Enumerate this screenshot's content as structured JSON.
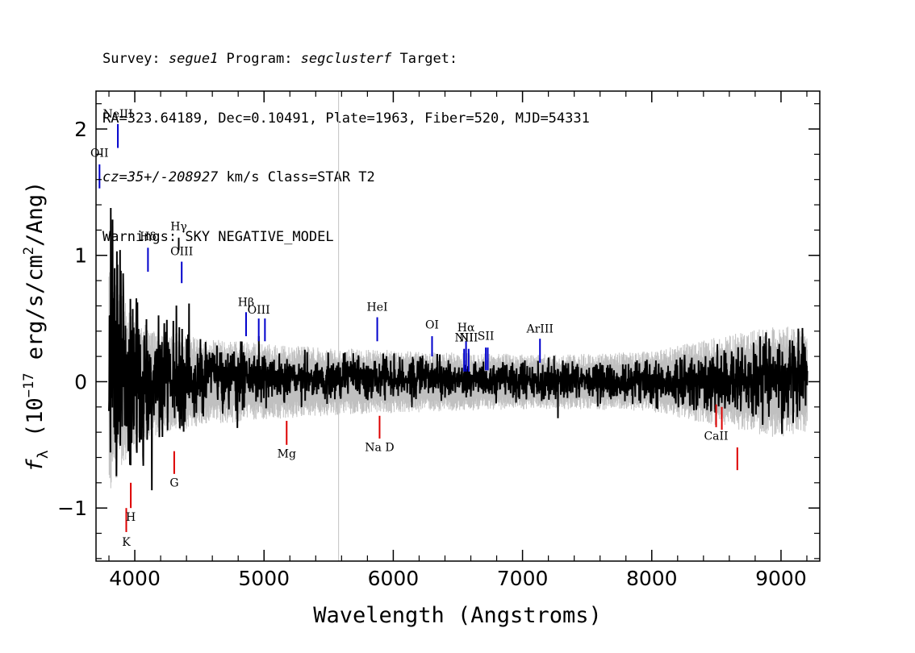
{
  "header": {
    "line1": {
      "survey_label": "Survey: ",
      "survey": "segue1",
      "program_label": " Program: ",
      "program": "segclusterf",
      "target_label": " Target:"
    },
    "line2": "RA=323.64189, Dec=0.10491, Plate=1963, Fiber=520, MJD=54331",
    "line3": {
      "cz": "cz=35+/-208927",
      "rest": " km/s Class=STAR T2"
    },
    "line4": "Warnings: SKY NEGATIVE_MODEL"
  },
  "chart_data": {
    "type": "line",
    "xlabel": "Wavelength (Angstroms)",
    "ylabel": "f_λ (10^-17 erg/s/cm^2/Ang)",
    "ylabel_parts": {
      "f": "f",
      "sub": "λ",
      "pre": " (10",
      "exp1": "−17",
      "mid": " erg/s/cm",
      "exp2": "2",
      "post": "/Ang)"
    },
    "xlim": [
      3700,
      9300
    ],
    "ylim": [
      -1.42,
      2.3
    ],
    "xticks": [
      4000,
      5000,
      6000,
      7000,
      8000,
      9000
    ],
    "yticks": [
      -1,
      0,
      1,
      2
    ],
    "ytick_labels": [
      "−1",
      "0",
      "1",
      "2"
    ],
    "sky_line_x": 5577,
    "series": [
      {
        "role": "error",
        "color": "#c0c0c0"
      },
      {
        "role": "flux",
        "color": "#000000"
      }
    ],
    "flux_profile": [
      [
        3800,
        0.15,
        0.55
      ],
      [
        3900,
        0.1,
        0.45
      ],
      [
        4000,
        0.05,
        0.32
      ],
      [
        4200,
        0.04,
        0.22
      ],
      [
        4500,
        0.03,
        0.14
      ],
      [
        5000,
        0.03,
        0.1
      ],
      [
        5500,
        0.02,
        0.08
      ],
      [
        6000,
        0.03,
        0.08
      ],
      [
        6500,
        0.02,
        0.07
      ],
      [
        7000,
        0.0,
        0.07
      ],
      [
        7500,
        0.0,
        0.07
      ],
      [
        8000,
        0.0,
        0.08
      ],
      [
        8500,
        0.0,
        0.12
      ],
      [
        9000,
        0.0,
        0.15
      ],
      [
        9200,
        0.05,
        0.17
      ]
    ],
    "error_profile": [
      [
        3800,
        0.9
      ],
      [
        3900,
        0.7
      ],
      [
        4000,
        0.5
      ],
      [
        4200,
        0.42
      ],
      [
        4500,
        0.35
      ],
      [
        5000,
        0.3
      ],
      [
        5500,
        0.27
      ],
      [
        6000,
        0.25
      ],
      [
        6500,
        0.23
      ],
      [
        7000,
        0.22
      ],
      [
        7500,
        0.22
      ],
      [
        8000,
        0.24
      ],
      [
        8500,
        0.35
      ],
      [
        9000,
        0.45
      ],
      [
        9200,
        0.4
      ]
    ],
    "emission_lines": [
      {
        "label": "OII",
        "x": 3727,
        "y1": 1.53,
        "y2": 1.72,
        "label_y": 1.78,
        "color": "#0000cc"
      },
      {
        "label": "NeIII",
        "x": 3869,
        "y1": 1.85,
        "y2": 2.04,
        "label_y": 2.09,
        "color": "#0000cc"
      },
      {
        "label": "Hδ",
        "x": 4102,
        "y1": 0.87,
        "y2": 1.06,
        "label_y": 1.12,
        "color": "#0000cc"
      },
      {
        "label": "Hγ",
        "x": 4340,
        "y1": 1.04,
        "y2": 1.14,
        "label_y": 1.2,
        "color": "#000000"
      },
      {
        "label": "OIII",
        "x": 4363,
        "y1": 0.78,
        "y2": 0.95,
        "label_y": 1.0,
        "color": "#0000cc"
      },
      {
        "label": "Hβ",
        "x": 4861,
        "y1": 0.36,
        "y2": 0.55,
        "label_y": 0.6,
        "color": "#0000cc"
      },
      {
        "label": "OIII",
        "x": 4959,
        "y1": 0.32,
        "y2": 0.5,
        "label_y": 0.54,
        "color": "#0000cc"
      },
      {
        "label": "",
        "x": 5007,
        "y1": 0.32,
        "y2": 0.5,
        "label_y": 0.54,
        "color": "#0000cc"
      },
      {
        "label": "HeI",
        "x": 5876,
        "y1": 0.32,
        "y2": 0.51,
        "label_y": 0.56,
        "color": "#0000cc"
      },
      {
        "label": "OI",
        "x": 6300,
        "y1": 0.2,
        "y2": 0.36,
        "label_y": 0.42,
        "color": "#0000cc"
      },
      {
        "label": "NII",
        "x": 6548,
        "y1": 0.08,
        "y2": 0.26,
        "label_y": 0.32,
        "color": "#0000cc"
      },
      {
        "label": "Hα",
        "x": 6563,
        "y1": 0.08,
        "y2": 0.32,
        "label_y": 0.4,
        "color": "#0000cc"
      },
      {
        "label": "NII",
        "x": 6583,
        "y1": 0.08,
        "y2": 0.26,
        "label_y": 0.32,
        "color": "#0000cc"
      },
      {
        "label": "SII",
        "x": 6716,
        "y1": 0.09,
        "y2": 0.27,
        "label_y": 0.33,
        "color": "#0000cc"
      },
      {
        "label": "",
        "x": 6731,
        "y1": 0.09,
        "y2": 0.27,
        "label_y": 0.33,
        "color": "#0000cc"
      },
      {
        "label": "ArIII",
        "x": 7135,
        "y1": 0.15,
        "y2": 0.34,
        "label_y": 0.39,
        "color": "#0000cc"
      }
    ],
    "absorption_lines": [
      {
        "label": "K",
        "x": 3934,
        "y1": -1.19,
        "y2": -1.0,
        "label_y": -1.3,
        "color": "#dd0000"
      },
      {
        "label": "H",
        "x": 3969,
        "y1": -1.0,
        "y2": -0.8,
        "label_y": -1.1,
        "color": "#dd0000"
      },
      {
        "label": "G",
        "x": 4305,
        "y1": -0.73,
        "y2": -0.55,
        "label_y": -0.83,
        "color": "#dd0000"
      },
      {
        "label": "Mg",
        "x": 5175,
        "y1": -0.5,
        "y2": -0.31,
        "label_y": -0.6,
        "color": "#dd0000"
      },
      {
        "label": "Na D",
        "x": 5894,
        "y1": -0.45,
        "y2": -0.27,
        "label_y": -0.55,
        "color": "#dd0000"
      },
      {
        "label": "CaII",
        "x": 8498,
        "y1": -0.36,
        "y2": -0.18,
        "label_y": -0.46,
        "color": "#dd0000"
      },
      {
        "label": "",
        "x": 8542,
        "y1": -0.38,
        "y2": -0.2,
        "label_y": -0.46,
        "color": "#dd0000"
      },
      {
        "label": "",
        "x": 8662,
        "y1": -0.7,
        "y2": -0.52,
        "label_y": -0.46,
        "color": "#dd0000"
      }
    ]
  }
}
